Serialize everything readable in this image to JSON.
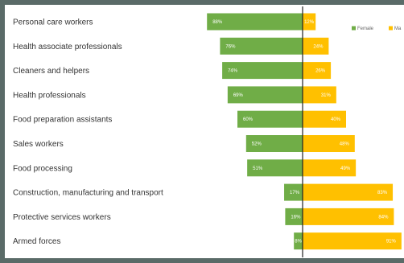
{
  "chart_data": {
    "type": "bar",
    "orientation": "horizontal-diverging",
    "categories": [
      "Personal care workers",
      "Health associate professionals",
      "Cleaners and helpers",
      "Health professionals",
      "Food preparation assistants",
      "Sales workers",
      "Food processing",
      "Construction, manufacturing and transport",
      "Protective services workers",
      "Armed forces"
    ],
    "series": [
      {
        "name": "Female",
        "color": "#70ad47",
        "values": [
          88,
          76,
          74,
          69,
          60,
          52,
          51,
          17,
          16,
          8
        ],
        "labels": [
          "88%",
          "76%",
          "74%",
          "69%",
          "60%",
          "52%",
          "51%",
          "17%",
          "16%",
          "8%"
        ]
      },
      {
        "name": "Ma",
        "color": "#ffc000",
        "values": [
          12,
          24,
          26,
          31,
          40,
          48,
          49,
          83,
          84,
          91
        ],
        "labels": [
          "12%",
          "24%",
          "26%",
          "31%",
          "40%",
          "48%",
          "49%",
          "83%",
          "84%",
          "91%"
        ]
      }
    ],
    "xlim": [
      -100,
      100
    ],
    "legend_position": "top-right",
    "grid": false,
    "title": "",
    "xlabel": "",
    "ylabel": ""
  }
}
